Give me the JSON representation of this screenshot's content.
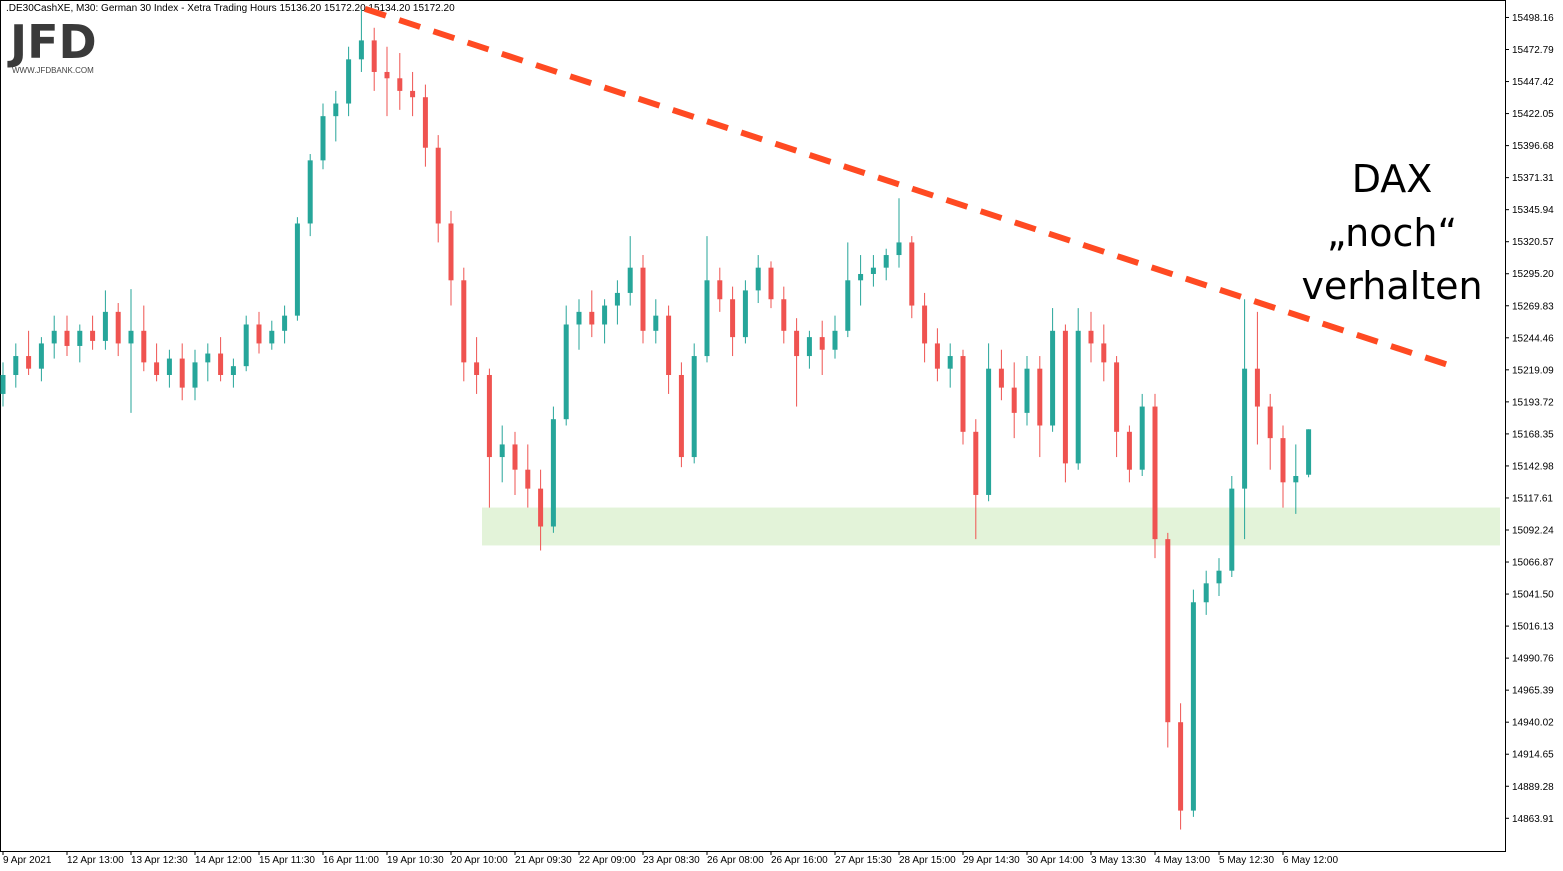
{
  "chart_data": {
    "type": "candlestick",
    "header": ".DE30CashXE, M30:  German 30 Index  - Xetra Trading Hours  15136.20 15172.20 15134.20 15172.20",
    "logo": "JFD",
    "logo_url": "WWW.JFDBANK.COM",
    "annotation": [
      "DAX",
      "„noch“",
      "verhalten"
    ],
    "up_color": "#26a69a",
    "down_color": "#ef5350",
    "categories": [
      "9 Apr 2021",
      null,
      null,
      null,
      null,
      "12 Apr 13:00",
      null,
      null,
      null,
      null,
      "13 Apr 12:30",
      null,
      null,
      null,
      null,
      "14 Apr 12:00",
      null,
      null,
      null,
      null,
      "15 Apr 11:30",
      null,
      null,
      null,
      null,
      "16 Apr 11:00",
      null,
      null,
      null,
      null,
      "19 Apr 10:30",
      null,
      null,
      null,
      null,
      "20 Apr 10:00",
      null,
      null,
      null,
      null,
      "21 Apr 09:30",
      null,
      null,
      null,
      null,
      "22 Apr 09:00",
      null,
      null,
      null,
      null,
      "23 Apr 08:30",
      null,
      null,
      null,
      null,
      "26 Apr 08:00",
      null,
      null,
      null,
      null,
      "26 Apr 16:00",
      null,
      null,
      null,
      null,
      "27 Apr 15:30",
      null,
      null,
      null,
      null,
      "28 Apr 15:00",
      null,
      null,
      null,
      null,
      "29 Apr 14:30",
      null,
      null,
      null,
      null,
      "30 Apr 14:00",
      null,
      null,
      null,
      null,
      "3 May 13:30",
      null,
      null,
      null,
      null,
      "4 May 13:00",
      null,
      null,
      null,
      null,
      "5 May 12:30",
      null,
      null,
      null,
      null,
      "6 May 12:00",
      null,
      null
    ],
    "open": [
      15200,
      15215,
      15230,
      15220,
      15240,
      15250,
      15238,
      15250,
      15242,
      15265,
      15240,
      15250,
      15225,
      15215,
      15228,
      15205,
      15225,
      15232,
      15215,
      15222,
      15255,
      15240,
      15250,
      15262,
      15335,
      15385,
      15420,
      15430,
      15465,
      15480,
      15455,
      15450,
      15440,
      15435,
      15395,
      15335,
      15290,
      15225,
      15215,
      15150,
      15160,
      15140,
      15125,
      15095,
      15180,
      15255,
      15265,
      15255,
      15270,
      15280,
      15300,
      15250,
      15262,
      15215,
      15150,
      15230,
      15290,
      15275,
      15245,
      15282,
      15300,
      15275,
      15250,
      15230,
      15245,
      15235,
      15250,
      15290,
      15295,
      15300,
      15310,
      15320,
      15270,
      15240,
      15220,
      15230,
      15170,
      15120,
      15220,
      15205,
      15185,
      15220,
      15175,
      15250,
      15145,
      15250,
      15240,
      15225,
      15170,
      15140,
      15190,
      15085,
      14940,
      14870,
      15035,
      15050,
      15060,
      15125,
      15220,
      15190,
      15165,
      15130,
      15136
    ],
    "high": [
      15225,
      15240,
      15250,
      15245,
      15262,
      15262,
      15255,
      15262,
      15282,
      15272,
      15283,
      15270,
      15240,
      15235,
      15240,
      15235,
      15240,
      15245,
      15228,
      15262,
      15265,
      15258,
      15270,
      15340,
      15390,
      15430,
      15440,
      15475,
      15505,
      15490,
      15475,
      15470,
      15455,
      15445,
      15405,
      15345,
      15300,
      15245,
      15220,
      15175,
      15170,
      15160,
      15140,
      15190,
      15270,
      15275,
      15282,
      15275,
      15290,
      15325,
      15310,
      15275,
      15270,
      15225,
      15240,
      15325,
      15300,
      15285,
      15290,
      15310,
      15305,
      15285,
      15260,
      15250,
      15258,
      15262,
      15320,
      15310,
      15310,
      15315,
      15355,
      15325,
      15280,
      15252,
      15240,
      15235,
      15180,
      15240,
      15235,
      15225,
      15230,
      15230,
      15268,
      15255,
      15268,
      15265,
      15255,
      15230,
      15175,
      15200,
      15200,
      15090,
      14955,
      15045,
      15060,
      15070,
      15135,
      15275,
      15265,
      15200,
      15175,
      15160,
      15172
    ],
    "low": [
      15190,
      15205,
      15215,
      15210,
      15228,
      15230,
      15225,
      15235,
      15235,
      15230,
      15185,
      15218,
      15210,
      15205,
      15195,
      15195,
      15210,
      15210,
      15205,
      15218,
      15232,
      15235,
      15240,
      15258,
      15325,
      15378,
      15400,
      15420,
      15455,
      15440,
      15420,
      15425,
      15420,
      15380,
      15320,
      15270,
      15210,
      15200,
      15110,
      15130,
      15120,
      15110,
      15076,
      15090,
      15175,
      15235,
      15245,
      15240,
      15255,
      15270,
      15240,
      15240,
      15200,
      15142,
      15145,
      15225,
      15265,
      15230,
      15240,
      15272,
      15268,
      15240,
      15190,
      15220,
      15215,
      15228,
      15245,
      15270,
      15285,
      15290,
      15300,
      15260,
      15225,
      15210,
      15205,
      15160,
      15085,
      15115,
      15195,
      15165,
      15175,
      15150,
      15170,
      15130,
      15140,
      15225,
      15210,
      15150,
      15130,
      15135,
      15070,
      14920,
      14855,
      14865,
      15025,
      15040,
      15055,
      15085,
      15160,
      15140,
      15110,
      15105,
      15134
    ],
    "close": [
      15215,
      15230,
      15220,
      15240,
      15250,
      15238,
      15250,
      15242,
      15265,
      15240,
      15250,
      15225,
      15215,
      15228,
      15205,
      15225,
      15232,
      15215,
      15222,
      15255,
      15240,
      15250,
      15262,
      15335,
      15385,
      15420,
      15430,
      15465,
      15480,
      15455,
      15450,
      15440,
      15435,
      15395,
      15335,
      15290,
      15225,
      15215,
      15150,
      15160,
      15140,
      15125,
      15095,
      15180,
      15255,
      15265,
      15255,
      15270,
      15280,
      15300,
      15250,
      15262,
      15215,
      15150,
      15230,
      15290,
      15275,
      15245,
      15282,
      15300,
      15275,
      15250,
      15230,
      15245,
      15235,
      15250,
      15290,
      15295,
      15300,
      15310,
      15320,
      15270,
      15240,
      15220,
      15230,
      15170,
      15120,
      15220,
      15205,
      15185,
      15220,
      15175,
      15250,
      15145,
      15250,
      15240,
      15225,
      15170,
      15140,
      15190,
      15085,
      14940,
      14870,
      15035,
      15050,
      15060,
      15125,
      15220,
      15190,
      15165,
      15130,
      15135,
      15172
    ],
    "ylim": [
      14838,
      15512
    ],
    "yticks": [
      15498.16,
      15472.79,
      15447.42,
      15422.05,
      15396.68,
      15371.31,
      15345.94,
      15320.57,
      {
        "value": 15295.2,
        "label": "15295.20"
      },
      15269.83,
      15244.46,
      15219.09,
      15193.72,
      15168.35,
      15142.98,
      15117.61,
      15092.24,
      15066.87,
      {
        "value": 15041.5,
        "label": "15041.50"
      },
      15016.13,
      14990.76,
      14965.39,
      14940.02,
      14914.65,
      14889.28,
      14863.91
    ],
    "zone": {
      "low": 15080,
      "high": 15110,
      "color": "#e3f3d9"
    },
    "trendline": {
      "start": 15505,
      "end": 15222,
      "color": "#ff4a22"
    }
  }
}
